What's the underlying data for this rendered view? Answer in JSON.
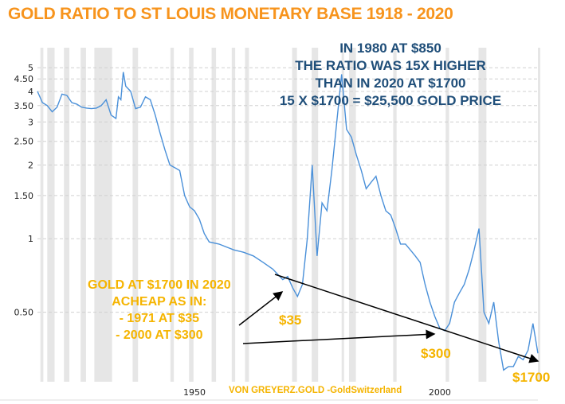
{
  "title": "GOLD RATIO TO ST LOUIS MONETARY BASE 1918 - 2020",
  "annotations": {
    "blue_lines": [
      "IN 1980 AT $850",
      "THE RATIO WAS 15X HIGHER",
      "THAN IN 2020 AT $1700",
      "15 X $1700 = $25,500 GOLD PRICE"
    ],
    "gold_lines": [
      "GOLD AT $1700 IN 2020",
      "ACHEAP AS IN:",
      "- 1971 AT $35",
      "- 2000 AT $300"
    ],
    "label_35": "$35",
    "label_300": "$300",
    "label_1700": "$1700",
    "credit": "VON GREYERZ.GOLD -GoldSwitzerland"
  },
  "colors": {
    "title": "#f7941d",
    "blue_text": "#1f4e79",
    "gold_text": "#f5b400",
    "line": "#4a90d9",
    "recession": "#e6e6e6"
  },
  "chart_data": {
    "type": "line",
    "title": "GOLD RATIO TO ST LOUIS MONETARY BASE 1918 - 2020",
    "xlabel": "",
    "ylabel": "",
    "xlim": [
      1918,
      2020
    ],
    "ylim": [
      0.26,
      5.6
    ],
    "yscale": "log",
    "grid": true,
    "xticks": [
      1950,
      2000
    ],
    "yticks": [
      0.5,
      1,
      1.5,
      2,
      2.5,
      3,
      3.5,
      4,
      4.5,
      5
    ],
    "ytick_labels": [
      "0.50",
      "1",
      "1.50",
      "2",
      "2.50",
      "3",
      "3.50",
      "4",
      "4.50",
      "5"
    ],
    "recessions": [
      [
        1918.6,
        1919.2
      ],
      [
        1920,
        1921.5
      ],
      [
        1923.4,
        1924.5
      ],
      [
        1926.8,
        1927.9
      ],
      [
        1929.6,
        1933.2
      ],
      [
        1937.4,
        1938.5
      ],
      [
        1945.1,
        1945.8
      ],
      [
        1948.9,
        1949.8
      ],
      [
        1953.5,
        1954.4
      ],
      [
        1957.6,
        1958.3
      ],
      [
        1960.3,
        1961.1
      ],
      [
        1969.9,
        1970.9
      ],
      [
        1973.9,
        1975.2
      ],
      [
        1980,
        1980.5
      ],
      [
        1981.5,
        1982.9
      ],
      [
        1990.5,
        1991.2
      ],
      [
        2001.2,
        2001.9
      ],
      [
        2007.9,
        2009.5
      ],
      [
        2020,
        2020.4
      ]
    ],
    "series": [
      {
        "x": [
          1918,
          1919,
          1920,
          1921,
          1922,
          1923,
          1924,
          1925,
          1926,
          1927,
          1928,
          1929,
          1930,
          1931,
          1932,
          1933,
          1934,
          1934.5,
          1935,
          1935.5,
          1936,
          1937,
          1938,
          1939,
          1940,
          1941,
          1942,
          1943,
          1944,
          1945,
          1946,
          1947,
          1948,
          1949,
          1950,
          1951,
          1952,
          1953,
          1955,
          1958,
          1960,
          1962,
          1964,
          1966,
          1968,
          1969,
          1970,
          1971,
          1972,
          1973,
          1974,
          1975,
          1976,
          1977,
          1978,
          1979,
          1980,
          1981,
          1982,
          1983,
          1984,
          1985,
          1986,
          1987,
          1988,
          1989,
          1990,
          1991,
          1992,
          1993,
          1994,
          1995,
          1996,
          1997,
          1998,
          1999,
          2000,
          2001,
          2002,
          2003,
          2004,
          2005,
          2006,
          2007,
          2008,
          2009,
          2010,
          2011,
          2012,
          2013,
          2014,
          2015,
          2016,
          2017,
          2018,
          2019,
          2020
        ],
        "y": [
          4.0,
          3.6,
          3.5,
          3.3,
          3.45,
          3.9,
          3.85,
          3.6,
          3.55,
          3.45,
          3.42,
          3.4,
          3.42,
          3.5,
          3.7,
          3.2,
          3.1,
          3.8,
          3.7,
          4.8,
          4.2,
          4.0,
          3.4,
          3.45,
          3.8,
          3.7,
          3.2,
          2.7,
          2.3,
          2.0,
          1.95,
          1.9,
          1.5,
          1.35,
          1.3,
          1.2,
          1.05,
          0.97,
          0.95,
          0.9,
          0.88,
          0.85,
          0.8,
          0.75,
          0.68,
          0.7,
          0.63,
          0.58,
          0.65,
          1.0,
          2.0,
          0.85,
          1.4,
          1.3,
          1.9,
          3.0,
          4.7,
          2.8,
          2.6,
          2.2,
          1.9,
          1.6,
          1.7,
          1.8,
          1.5,
          1.3,
          1.25,
          1.1,
          0.95,
          0.95,
          0.9,
          0.85,
          0.8,
          0.65,
          0.55,
          0.48,
          0.43,
          0.42,
          0.45,
          0.55,
          0.6,
          0.65,
          0.75,
          0.9,
          1.1,
          0.5,
          0.45,
          0.55,
          0.38,
          0.29,
          0.3,
          0.3,
          0.33,
          0.32,
          0.35,
          0.45,
          0.34
        ]
      }
    ]
  }
}
